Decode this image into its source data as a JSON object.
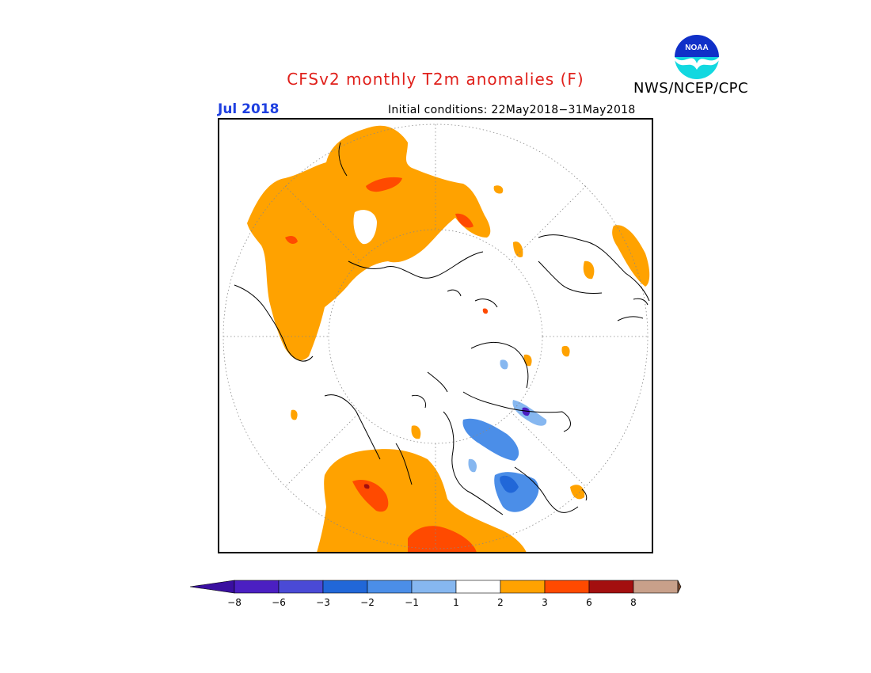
{
  "header": {
    "title": "CFSv2 monthly T2m anomalies (F)",
    "month": "Jul 2018",
    "initial_conditions": "Initial conditions: 22May2018−31May2018",
    "organization": "NWS/NCEP/CPC",
    "logo_text": "NOAA"
  },
  "map": {
    "projection": "north-polar-stereographic",
    "legend_ticks": [
      "−8",
      "−6",
      "−3",
      "−2",
      "−1",
      "1",
      "2",
      "3",
      "6",
      "8"
    ],
    "legend_colors": [
      "#4b1fc2",
      "#4a4ad6",
      "#2167d8",
      "#4b8ee8",
      "#86b7f0",
      "#ffffff",
      "#ffa200",
      "#ff4a00",
      "#a30f0f",
      "#c8a08a"
    ],
    "left_arrow_color": "#3a0fa0",
    "right_arrow_color": "#7a4a30"
  }
}
